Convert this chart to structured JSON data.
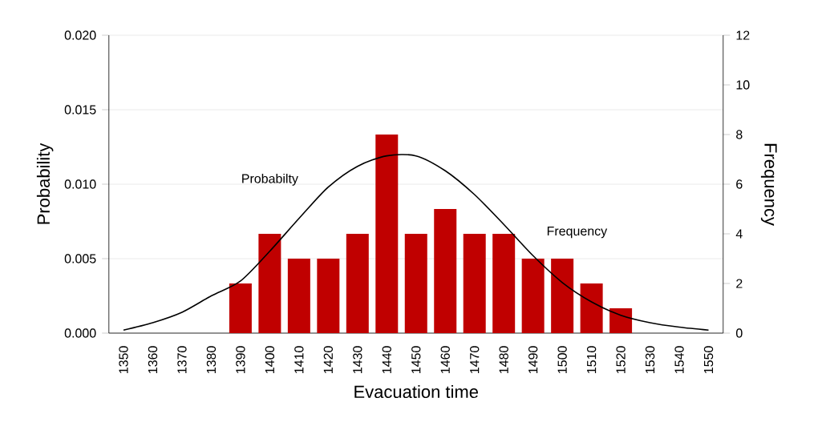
{
  "chart_data": {
    "type": "bar",
    "xlabel": "Evacuation time",
    "ylabel": "Probability",
    "y2label": "Frequency",
    "categories": [
      "1350",
      "1360",
      "1370",
      "1380",
      "1390",
      "1400",
      "1410",
      "1420",
      "1430",
      "1440",
      "1450",
      "1460",
      "1470",
      "1480",
      "1490",
      "1500",
      "1510",
      "1520",
      "1530",
      "1540",
      "1550"
    ],
    "series": [
      {
        "name": "Frequency",
        "axis": "y2",
        "color": "#c00000",
        "values": [
          0,
          0,
          0,
          0,
          2,
          4,
          3,
          3,
          4,
          8,
          4,
          5,
          4,
          4,
          3,
          3,
          2,
          1,
          0,
          0,
          0
        ]
      },
      {
        "name": "Probabilty",
        "type": "line",
        "color": "#000000",
        "values": [
          0.0002,
          0.0007,
          0.0014,
          0.0025,
          0.0035,
          0.0055,
          0.0077,
          0.0098,
          0.0112,
          0.0119,
          0.0119,
          0.0109,
          0.0093,
          0.0073,
          0.0052,
          0.0034,
          0.0021,
          0.0012,
          0.0007,
          0.0004,
          0.0002
        ]
      }
    ],
    "ylim": [
      0,
      0.02
    ],
    "yticks": [
      {
        "value": 0,
        "label": "0.000"
      },
      {
        "value": 0.005,
        "label": "0.005"
      },
      {
        "value": 0.01,
        "label": "0.010"
      },
      {
        "value": 0.015,
        "label": "0.015"
      },
      {
        "value": 0.02,
        "label": "0.020"
      }
    ],
    "y2lim": [
      0,
      12
    ],
    "y2ticks": [
      0,
      2,
      4,
      6,
      8,
      10,
      12
    ],
    "grid": "y",
    "legend": false,
    "marker": "none",
    "line_style": "solid"
  }
}
